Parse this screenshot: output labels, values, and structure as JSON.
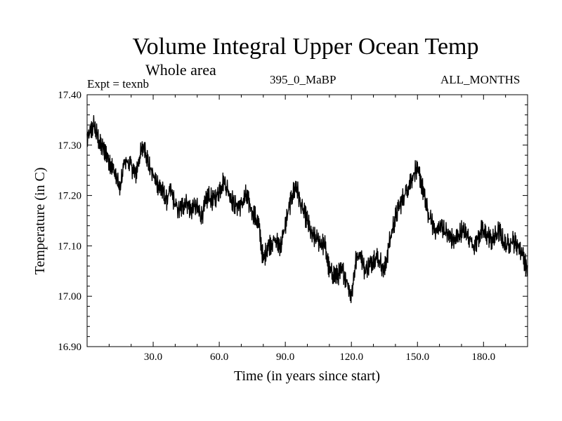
{
  "header": {
    "title": "Volume Integral Upper Ocean Temp",
    "region": "Whole area",
    "experiment": "Expt = texnb",
    "run_id": "395_0_MaBP",
    "period": "ALL_MONTHS"
  },
  "chart_data": {
    "type": "line",
    "title": "Volume Integral Upper Ocean Temp",
    "xlabel": "Time (in years since start)",
    "ylabel": "Temperature (in C)",
    "xlim": [
      0,
      200
    ],
    "ylim": [
      16.9,
      17.4
    ],
    "xticks": [
      30,
      60,
      90,
      120,
      150,
      180
    ],
    "xtick_labels": [
      "30.0",
      "60.0",
      "90.0",
      "120.0",
      "150.0",
      "180.0"
    ],
    "yticks": [
      16.9,
      17.0,
      17.1,
      17.2,
      17.3,
      17.4
    ],
    "ytick_labels": [
      "16.90",
      "17.00",
      "17.10",
      "17.20",
      "17.30",
      "17.40"
    ],
    "grid": false,
    "series": [
      {
        "name": "Temperature",
        "color": "#000000",
        "x": [
          0,
          3,
          6,
          8,
          10,
          13,
          15,
          17,
          20,
          22,
          24,
          26,
          28,
          31,
          34,
          36,
          38,
          40,
          42,
          45,
          47,
          49,
          52,
          55,
          57,
          59,
          62,
          64,
          67,
          70,
          72,
          75,
          78,
          80,
          82,
          85,
          88,
          90,
          93,
          95,
          97,
          100,
          102,
          105,
          108,
          110,
          113,
          116,
          118,
          120,
          122,
          124,
          126,
          128,
          131,
          133,
          135,
          137,
          139,
          141,
          143,
          145,
          147,
          149,
          151,
          153,
          155,
          157,
          159,
          161,
          164,
          167,
          170,
          173,
          176,
          179,
          182,
          184,
          187,
          190,
          193,
          196,
          198,
          200
        ],
        "y": [
          17.31,
          17.34,
          17.3,
          17.29,
          17.27,
          17.24,
          17.21,
          17.27,
          17.26,
          17.24,
          17.28,
          17.3,
          17.26,
          17.23,
          17.21,
          17.19,
          17.21,
          17.18,
          17.17,
          17.19,
          17.17,
          17.18,
          17.16,
          17.2,
          17.19,
          17.2,
          17.23,
          17.21,
          17.18,
          17.18,
          17.2,
          17.17,
          17.14,
          17.07,
          17.1,
          17.11,
          17.1,
          17.14,
          17.2,
          17.22,
          17.18,
          17.15,
          17.12,
          17.11,
          17.1,
          17.05,
          17.04,
          17.05,
          17.03,
          17.0,
          17.07,
          17.09,
          17.05,
          17.06,
          17.08,
          17.07,
          17.05,
          17.1,
          17.14,
          17.17,
          17.19,
          17.21,
          17.23,
          17.25,
          17.24,
          17.2,
          17.16,
          17.14,
          17.13,
          17.14,
          17.12,
          17.11,
          17.13,
          17.12,
          17.1,
          17.13,
          17.12,
          17.11,
          17.13,
          17.1,
          17.11,
          17.1,
          17.08,
          17.05
        ]
      }
    ]
  }
}
